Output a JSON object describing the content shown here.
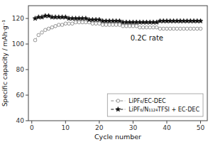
{
  "chart_data": {
    "type": "line",
    "xlabel": "Cycle number",
    "ylabel": "Specific capacity / mAh·g⁻¹",
    "annotation": "0.2C rate",
    "xlim": [
      -1,
      52
    ],
    "ylim": [
      40,
      130
    ],
    "xticks": [
      0,
      10,
      20,
      30,
      40,
      50
    ],
    "yticks": [
      40,
      60,
      80,
      100,
      120
    ],
    "legend": "lower right",
    "grid": false,
    "x": [
      1,
      2,
      3,
      4,
      5,
      6,
      7,
      8,
      9,
      10,
      11,
      12,
      13,
      14,
      15,
      16,
      17,
      18,
      19,
      20,
      21,
      22,
      23,
      24,
      25,
      26,
      27,
      28,
      29,
      30,
      31,
      32,
      33,
      34,
      35,
      36,
      37,
      38,
      39,
      40,
      41,
      42,
      43,
      44,
      45,
      46,
      47,
      48,
      49,
      50
    ],
    "series": [
      {
        "name": "LiPF₆/EC-DEC",
        "color": "#888888",
        "marker": "circle",
        "line_style": "dashed",
        "values": [
          103,
          107,
          109,
          111,
          112,
          113,
          114,
          115,
          115,
          116,
          116,
          116,
          117,
          117,
          117,
          117,
          117,
          116,
          116,
          116,
          115,
          115,
          115,
          115,
          115,
          115,
          114,
          114,
          114,
          114,
          114,
          113,
          113,
          113,
          113,
          113,
          113,
          112,
          112,
          112,
          112,
          112,
          112,
          112,
          112,
          112,
          112,
          112,
          112,
          112
        ]
      },
      {
        "name": "LiPF₆/N₁₁₂₄TFSI + EC-DEC",
        "color": "#111111",
        "marker": "star",
        "line_style": "dashed",
        "values": [
          120,
          121,
          121,
          122,
          122,
          121,
          121,
          121,
          121,
          121,
          120,
          120,
          120,
          120,
          120,
          120,
          119,
          119,
          119,
          119,
          118,
          118,
          118,
          118,
          118,
          118,
          117,
          117,
          117,
          117,
          117,
          117,
          117,
          117,
          117,
          117,
          117,
          118,
          118,
          118,
          118,
          118,
          118,
          118,
          118,
          118,
          118,
          118,
          118,
          118
        ]
      }
    ]
  }
}
